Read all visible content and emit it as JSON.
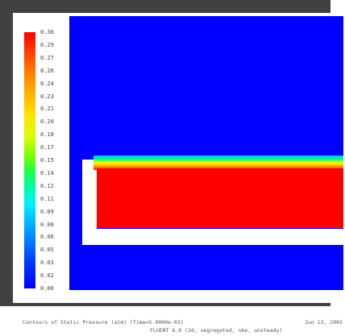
{
  "colorbar": {
    "labels": [
      "0.30",
      "0.29",
      "0.27",
      "0.26",
      "0.24",
      "0.23",
      "0.21",
      "0.20",
      "0.18",
      "0.17",
      "0.15",
      "0.14",
      "0.12",
      "0.11",
      "0.09",
      "0.08",
      "0.06",
      "0.05",
      "0.03",
      "0.02",
      "0.00"
    ],
    "colors": {
      "high": "#ff0000",
      "low": "#0000ff"
    }
  },
  "caption": {
    "contours": "Contours of Static Pressure (atm) (Time=5.0000e-03)",
    "date": "Jun 13, 2002",
    "solver": "FLUENT 6.0 (2d, segregated, ske, unsteady)"
  },
  "colors": {
    "background": "#0000ff",
    "fluid": "#ff0000",
    "frame": "#404040"
  }
}
